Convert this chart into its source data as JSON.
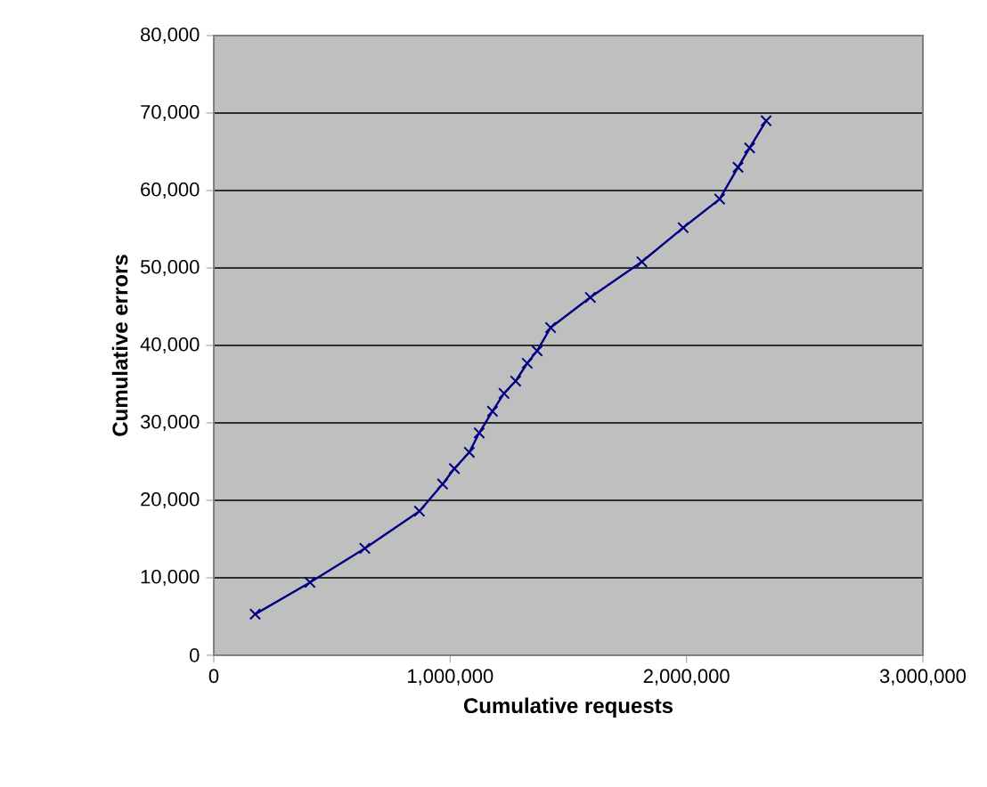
{
  "chart_data": {
    "type": "line",
    "xlabel": "Cumulative requests",
    "ylabel": "Cumulative errors",
    "xlim": [
      0,
      3000000
    ],
    "xticks": [
      0,
      {
        "value": 1000000,
        "label": "1,000,000"
      },
      {
        "value": 2000000,
        "label": "2,000,000"
      },
      {
        "value": 3000000,
        "label": "3,000,000"
      }
    ],
    "ylim": [
      0,
      80000
    ],
    "yticks": [
      0,
      {
        "value": 10000,
        "label": "10,000"
      },
      {
        "value": 20000,
        "label": "20,000"
      },
      {
        "value": 30000,
        "label": "30,000"
      },
      {
        "value": 40000,
        "label": "40,000"
      },
      {
        "value": 50000,
        "label": "50,000"
      },
      {
        "value": 60000,
        "label": "60,000"
      },
      {
        "value": 70000,
        "label": "70,000"
      },
      {
        "value": 80000,
        "label": "80,000"
      }
    ],
    "grid": "y",
    "legend": false,
    "marker": "cross",
    "line_style": "solid",
    "series": [
      {
        "color": "#000080",
        "x": [
          175000,
          407000,
          639000,
          870000,
          968000,
          1018000,
          1081000,
          1123000,
          1179000,
          1228000,
          1277000,
          1326000,
          1368000,
          1425000,
          1593000,
          1811000,
          1986000,
          2140000,
          2218000,
          2267000,
          2337000
        ],
        "values": [
          5300,
          9400,
          13800,
          18600,
          22100,
          24100,
          26200,
          28700,
          31500,
          33800,
          35400,
          37700,
          39300,
          42300,
          46200,
          50800,
          55200,
          58900,
          63000,
          65500,
          69000
        ]
      }
    ]
  }
}
